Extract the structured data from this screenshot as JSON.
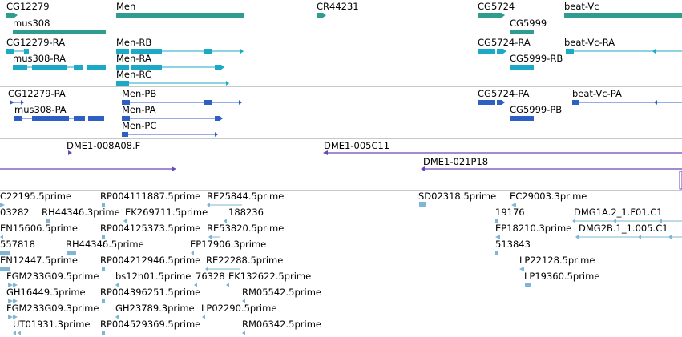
{
  "colors": {
    "genes": "#2f9c90",
    "transcripts": "#1ba9c6",
    "proteins": "#2e5fc4",
    "clones": "#6b46b8",
    "ests": "#7fb6d6",
    "separator": "#c8c8c8"
  },
  "tracks": {
    "genes": {
      "labels": [
        {
          "id": "cg12279",
          "text": "CG12279"
        },
        {
          "id": "men",
          "text": "Men"
        },
        {
          "id": "cr44231",
          "text": "CR44231"
        },
        {
          "id": "cg5724",
          "text": "CG5724"
        },
        {
          "id": "beat-vc",
          "text": "beat-Vc"
        },
        {
          "id": "mus308",
          "text": "mus308"
        },
        {
          "id": "cg5999",
          "text": "CG5999"
        }
      ]
    },
    "transcripts": {
      "labels": [
        {
          "id": "cg12279-ra",
          "text": "CG12279-RA"
        },
        {
          "id": "men-rb",
          "text": "Men-RB"
        },
        {
          "id": "cg5724-ra",
          "text": "CG5724-RA"
        },
        {
          "id": "beat-vc-ra",
          "text": "beat-Vc-RA"
        },
        {
          "id": "mus308-ra",
          "text": "mus308-RA"
        },
        {
          "id": "men-ra",
          "text": "Men-RA"
        },
        {
          "id": "cg5999-rb",
          "text": "CG5999-RB"
        },
        {
          "id": "men-rc",
          "text": "Men-RC"
        }
      ]
    },
    "proteins": {
      "labels": [
        {
          "id": "cg12279-pa",
          "text": "CG12279-PA"
        },
        {
          "id": "men-pb",
          "text": "Men-PB"
        },
        {
          "id": "cg5724-pa",
          "text": "CG5724-PA"
        },
        {
          "id": "beat-vc-pa",
          "text": "beat-Vc-PA"
        },
        {
          "id": "mus308-pa",
          "text": "mus308-PA"
        },
        {
          "id": "men-pa",
          "text": "Men-PA"
        },
        {
          "id": "cg5999-pb",
          "text": "CG5999-PB"
        },
        {
          "id": "men-pc",
          "text": "Men-PC"
        }
      ]
    },
    "clones": {
      "labels": [
        {
          "id": "dme1-008a08f",
          "text": "DME1-008A08.F"
        },
        {
          "id": "dme1-005c11",
          "text": "DME1-005C11"
        },
        {
          "id": "dme1-021p18",
          "text": "DME1-021P18"
        }
      ]
    },
    "ests": {
      "labels": [
        {
          "id": "e1",
          "text": "C22195.5prime"
        },
        {
          "id": "e2",
          "text": "RP004111887.5prime"
        },
        {
          "id": "e3",
          "text": "RE25844.5prime"
        },
        {
          "id": "e4",
          "text": "SD02318.5prime"
        },
        {
          "id": "e5",
          "text": "EC29003.3prime"
        },
        {
          "id": "e6",
          "text": "03282"
        },
        {
          "id": "e7",
          "text": "RH44346.3prime"
        },
        {
          "id": "e8",
          "text": "EK269711.5prime"
        },
        {
          "id": "e9",
          "text": "188236"
        },
        {
          "id": "e10",
          "text": "19176"
        },
        {
          "id": "e11",
          "text": "DMG1A.2_1.F01.C1"
        },
        {
          "id": "e12",
          "text": "EN15606.5prime"
        },
        {
          "id": "e13",
          "text": "RP004125373.5prime"
        },
        {
          "id": "e14",
          "text": "RE53820.5prime"
        },
        {
          "id": "e15",
          "text": "EP18210.3prime"
        },
        {
          "id": "e16",
          "text": "DMG2B.1_1.005.C1"
        },
        {
          "id": "e17",
          "text": "557818"
        },
        {
          "id": "e18",
          "text": "RH44346.5prime"
        },
        {
          "id": "e19",
          "text": "EP17906.3prime"
        },
        {
          "id": "e20",
          "text": "513843"
        },
        {
          "id": "e21",
          "text": "EN12447.5prime"
        },
        {
          "id": "e22",
          "text": "RP004212946.5prime"
        },
        {
          "id": "e23",
          "text": "RE22288.5prime"
        },
        {
          "id": "e24",
          "text": "LP22128.5prime"
        },
        {
          "id": "e25",
          "text": "FGM233G09.5prime"
        },
        {
          "id": "e26",
          "text": "bs12h01.5prime"
        },
        {
          "id": "e27",
          "text": "76328"
        },
        {
          "id": "e28",
          "text": "EK132622.5prime"
        },
        {
          "id": "e29",
          "text": "LP19360.5prime"
        },
        {
          "id": "e30",
          "text": "GH16449.5prime"
        },
        {
          "id": "e31",
          "text": "RP004396251.5prime"
        },
        {
          "id": "e32",
          "text": "RM05542.5prime"
        },
        {
          "id": "e33",
          "text": "FGM233G09.3prime"
        },
        {
          "id": "e34",
          "text": "GH23789.3prime"
        },
        {
          "id": "e35",
          "text": "LP02290.5prime"
        },
        {
          "id": "e36",
          "text": "UT01931.3prime"
        },
        {
          "id": "e37",
          "text": "RP004529369.5prime"
        },
        {
          "id": "e38",
          "text": "RM06342.5prime"
        }
      ]
    }
  }
}
